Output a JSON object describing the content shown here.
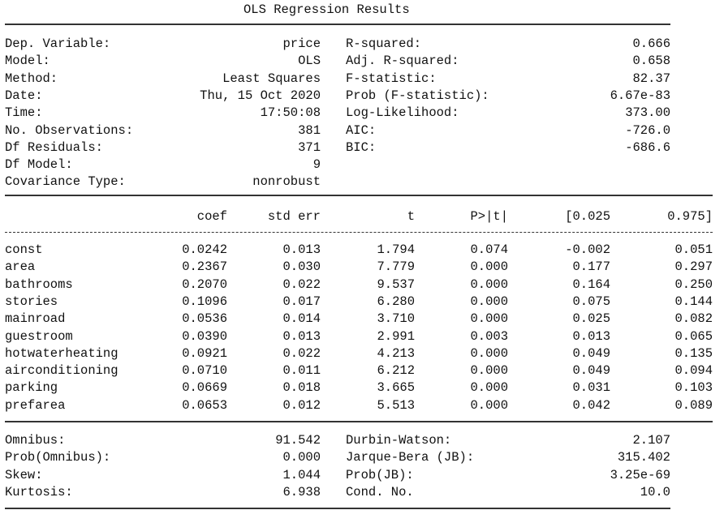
{
  "title": "OLS Regression Results",
  "summary_rows": [
    {
      "l_label": "Dep. Variable:",
      "l_value": "price",
      "r_label": "R-squared:",
      "r_value": "0.666"
    },
    {
      "l_label": "Model:",
      "l_value": "OLS",
      "r_label": "Adj. R-squared:",
      "r_value": "0.658"
    },
    {
      "l_label": "Method:",
      "l_value": "Least Squares",
      "r_label": "F-statistic:",
      "r_value": "82.37"
    },
    {
      "l_label": "Date:",
      "l_value": "Thu, 15 Oct 2020",
      "r_label": "Prob (F-statistic):",
      "r_value": "6.67e-83"
    },
    {
      "l_label": "Time:",
      "l_value": "17:50:08",
      "r_label": "Log-Likelihood:",
      "r_value": "373.00"
    },
    {
      "l_label": "No. Observations:",
      "l_value": "381",
      "r_label": "AIC:",
      "r_value": "-726.0"
    },
    {
      "l_label": "Df Residuals:",
      "l_value": "371",
      "r_label": "BIC:",
      "r_value": "-686.6"
    },
    {
      "l_label": "Df Model:",
      "l_value": "9",
      "r_label": "",
      "r_value": ""
    },
    {
      "l_label": "Covariance Type:",
      "l_value": "nonrobust",
      "r_label": "",
      "r_value": ""
    }
  ],
  "coef_headers": [
    "coef",
    "std err",
    "t",
    "P>|t|",
    "[0.025",
    "0.975]"
  ],
  "coef_rows": [
    {
      "name": "const",
      "coef": "0.0242",
      "stderr": "0.013",
      "t": "1.794",
      "p": "0.074",
      "lo": "-0.002",
      "hi": "0.051"
    },
    {
      "name": "area",
      "coef": "0.2367",
      "stderr": "0.030",
      "t": "7.779",
      "p": "0.000",
      "lo": "0.177",
      "hi": "0.297"
    },
    {
      "name": "bathrooms",
      "coef": "0.2070",
      "stderr": "0.022",
      "t": "9.537",
      "p": "0.000",
      "lo": "0.164",
      "hi": "0.250"
    },
    {
      "name": "stories",
      "coef": "0.1096",
      "stderr": "0.017",
      "t": "6.280",
      "p": "0.000",
      "lo": "0.075",
      "hi": "0.144"
    },
    {
      "name": "mainroad",
      "coef": "0.0536",
      "stderr": "0.014",
      "t": "3.710",
      "p": "0.000",
      "lo": "0.025",
      "hi": "0.082"
    },
    {
      "name": "guestroom",
      "coef": "0.0390",
      "stderr": "0.013",
      "t": "2.991",
      "p": "0.003",
      "lo": "0.013",
      "hi": "0.065"
    },
    {
      "name": "hotwaterheating",
      "coef": "0.0921",
      "stderr": "0.022",
      "t": "4.213",
      "p": "0.000",
      "lo": "0.049",
      "hi": "0.135"
    },
    {
      "name": "airconditioning",
      "coef": "0.0710",
      "stderr": "0.011",
      "t": "6.212",
      "p": "0.000",
      "lo": "0.049",
      "hi": "0.094"
    },
    {
      "name": "parking",
      "coef": "0.0669",
      "stderr": "0.018",
      "t": "3.665",
      "p": "0.000",
      "lo": "0.031",
      "hi": "0.103"
    },
    {
      "name": "prefarea",
      "coef": "0.0653",
      "stderr": "0.012",
      "t": "5.513",
      "p": "0.000",
      "lo": "0.042",
      "hi": "0.089"
    }
  ],
  "diag_rows": [
    {
      "l_label": "Omnibus:",
      "l_value": "91.542",
      "r_label": "Durbin-Watson:",
      "r_value": "2.107"
    },
    {
      "l_label": "Prob(Omnibus):",
      "l_value": "0.000",
      "r_label": "Jarque-Bera (JB):",
      "r_value": "315.402"
    },
    {
      "l_label": "Skew:",
      "l_value": "1.044",
      "r_label": "Prob(JB):",
      "r_value": "3.25e-69"
    },
    {
      "l_label": "Kurtosis:",
      "l_value": "6.938",
      "r_label": "Cond. No.",
      "r_value": "10.0"
    }
  ]
}
